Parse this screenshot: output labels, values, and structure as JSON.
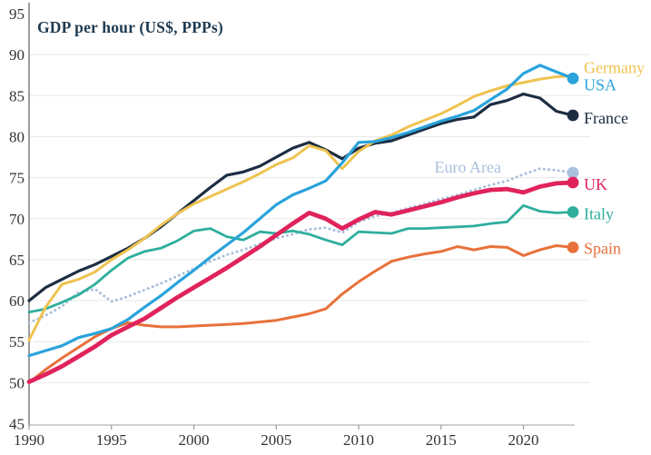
{
  "chart_data": {
    "type": "line",
    "title": "GDP per hour (US$, PPPs)",
    "xlabel": "",
    "ylabel": "",
    "x_range": [
      1990,
      2023
    ],
    "y_range": [
      45,
      95
    ],
    "x_ticks": [
      1990,
      1995,
      2000,
      2005,
      2010,
      2015,
      2020
    ],
    "y_ticks": [
      45,
      50,
      55,
      60,
      65,
      70,
      75,
      80,
      85,
      90,
      95
    ],
    "grid": "horizontal-light",
    "legend_position": "right-of-line-ends",
    "title_color": "#1e3a50",
    "grid_color": "#e8e8e8",
    "x_axis_color": "#b5b5b5",
    "y_axis_color": "#7d7d7d",
    "tick_label_color": "#333333",
    "years": [
      1990,
      1991,
      1992,
      1993,
      1994,
      1995,
      1996,
      1997,
      1998,
      1999,
      2000,
      2001,
      2002,
      2003,
      2004,
      2005,
      2006,
      2007,
      2008,
      2009,
      2010,
      2011,
      2012,
      2013,
      2014,
      2015,
      2016,
      2017,
      2018,
      2019,
      2020,
      2021,
      2022,
      2023
    ],
    "series": [
      {
        "name": "euro-area",
        "label": "Euro Area",
        "color": "#a9bfdd",
        "line_width": 3,
        "dashed": true,
        "end_dot": true,
        "label_placement": {
          "type": "floating",
          "year": 2014.6,
          "value": 76.3
        },
        "values": [
          57.3,
          58.2,
          59.3,
          61.0,
          61.4,
          59.9,
          60.5,
          61.3,
          62.1,
          63.0,
          63.9,
          64.8,
          65.6,
          66.2,
          66.9,
          67.6,
          68.1,
          68.7,
          68.9,
          68.3,
          69.6,
          70.3,
          70.7,
          71.3,
          71.8,
          72.4,
          72.9,
          73.5,
          74.1,
          74.6,
          75.4,
          76.1,
          75.9,
          75.6
        ]
      },
      {
        "name": "spain",
        "label": "Spain",
        "color": "#e8713a",
        "line_width": 3,
        "dashed": false,
        "end_dot": true,
        "label_placement": {
          "type": "end",
          "dy": 1
        },
        "values": [
          50.0,
          51.6,
          53.0,
          54.3,
          55.6,
          56.6,
          57.3,
          57.0,
          56.8,
          56.8,
          56.9,
          57.0,
          57.1,
          57.2,
          57.4,
          57.6,
          58.0,
          58.4,
          59.0,
          60.8,
          62.3,
          63.6,
          64.8,
          65.3,
          65.7,
          66.0,
          66.6,
          66.2,
          66.6,
          66.5,
          65.5,
          66.2,
          66.7,
          66.5
        ]
      },
      {
        "name": "italy",
        "label": "Italy",
        "color": "#2fae9d",
        "line_width": 2.8,
        "dashed": false,
        "end_dot": true,
        "label_placement": {
          "type": "end",
          "dy": 2
        },
        "values": [
          58.6,
          59.0,
          59.8,
          60.7,
          62.0,
          63.7,
          65.2,
          66.0,
          66.4,
          67.3,
          68.5,
          68.8,
          67.8,
          67.4,
          68.4,
          68.2,
          68.5,
          68.1,
          67.4,
          66.8,
          68.4,
          68.3,
          68.2,
          68.8,
          68.8,
          68.9,
          69.0,
          69.1,
          69.4,
          69.6,
          71.6,
          70.9,
          70.7,
          70.8
        ]
      },
      {
        "name": "france",
        "label": "France",
        "color": "#1d2d42",
        "line_width": 3.2,
        "dashed": false,
        "end_dot": true,
        "label_placement": {
          "type": "end",
          "dy": 3
        },
        "values": [
          60.0,
          61.6,
          62.6,
          63.6,
          64.4,
          65.4,
          66.4,
          67.6,
          69.0,
          70.6,
          72.2,
          73.8,
          75.3,
          75.7,
          76.4,
          77.5,
          78.6,
          79.3,
          78.4,
          77.3,
          78.6,
          79.2,
          79.5,
          80.2,
          80.9,
          81.6,
          82.1,
          82.4,
          83.9,
          84.4,
          85.2,
          84.7,
          83.1,
          82.6
        ]
      },
      {
        "name": "germany",
        "label": "Germany",
        "color": "#eec351",
        "line_width": 3,
        "dashed": false,
        "end_dot": false,
        "label_placement": {
          "type": "end",
          "dy": -9
        },
        "values": [
          55.2,
          59.2,
          62.0,
          62.6,
          63.5,
          65.0,
          66.2,
          67.6,
          69.2,
          70.6,
          71.8,
          72.7,
          73.6,
          74.5,
          75.5,
          76.6,
          77.4,
          78.9,
          78.3,
          76.1,
          78.2,
          79.5,
          80.2,
          81.2,
          82.0,
          82.8,
          83.8,
          84.9,
          85.6,
          86.2,
          86.6,
          87.0,
          87.3,
          87.4
        ]
      },
      {
        "name": "uk",
        "label": "UK",
        "color": "#e0235c",
        "line_width": 4.8,
        "dashed": false,
        "end_dot": true,
        "label_placement": {
          "type": "end",
          "dy": 2
        },
        "values": [
          50.1,
          51.0,
          52.0,
          53.2,
          54.4,
          55.8,
          56.8,
          57.8,
          59.1,
          60.4,
          61.6,
          62.8,
          64.0,
          65.3,
          66.6,
          68.0,
          69.4,
          70.7,
          70.0,
          68.8,
          69.9,
          70.8,
          70.5,
          71.0,
          71.5,
          72.0,
          72.6,
          73.1,
          73.5,
          73.6,
          73.2,
          73.9,
          74.3,
          74.4
        ]
      },
      {
        "name": "usa",
        "label": "USA",
        "color": "#2aa3db",
        "line_width": 3.2,
        "dashed": false,
        "end_dot": true,
        "label_placement": {
          "type": "end",
          "dy": 7
        },
        "values": [
          53.3,
          53.9,
          54.5,
          55.5,
          56.0,
          56.6,
          57.7,
          59.2,
          60.6,
          62.2,
          63.7,
          65.3,
          66.8,
          68.3,
          70.0,
          71.7,
          72.9,
          73.7,
          74.6,
          76.8,
          79.3,
          79.4,
          79.9,
          80.5,
          81.2,
          81.9,
          82.5,
          83.2,
          84.5,
          85.8,
          87.7,
          88.7,
          87.9,
          87.1
        ]
      }
    ]
  }
}
